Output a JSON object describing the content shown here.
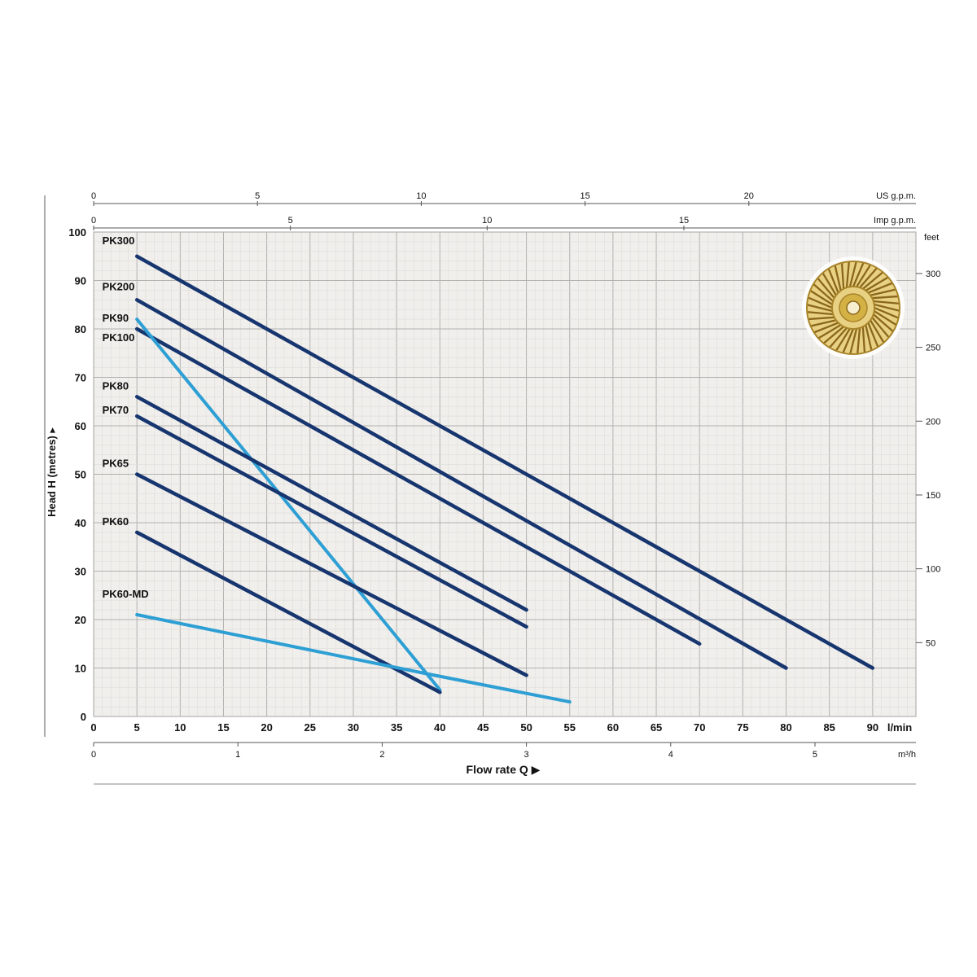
{
  "chart_data": {
    "type": "line",
    "xlabel": "Flow rate Q",
    "xlabel_arrow": "▶",
    "x_axis": {
      "unit": "l/min",
      "min": 0,
      "max": 95,
      "ticks": [
        0,
        5,
        10,
        15,
        20,
        25,
        30,
        35,
        40,
        45,
        50,
        55,
        60,
        65,
        70,
        75,
        80,
        85,
        90
      ]
    },
    "y_axis": {
      "label": "Head H (metres)",
      "arrow": "▸",
      "min": 0,
      "max": 100,
      "ticks": [
        0,
        10,
        20,
        30,
        40,
        50,
        60,
        70,
        80,
        90,
        100
      ]
    },
    "top_axes": [
      {
        "unit": "US g.p.m.",
        "ticks": [
          0,
          5,
          10,
          15,
          20
        ],
        "lmin_per_unit": 3.785
      },
      {
        "unit": "Imp g.p.m.",
        "ticks": [
          0,
          5,
          10,
          15
        ],
        "lmin_per_unit": 4.546
      }
    ],
    "right_axis": {
      "unit": "feet",
      "ticks": [
        50,
        100,
        150,
        200,
        250,
        300
      ],
      "m_per_unit": 0.3048
    },
    "bottom_axis": {
      "unit": "m³/h",
      "ticks": [
        0,
        1,
        2,
        3,
        4,
        5
      ],
      "lmin_per_unit": 16.667
    },
    "grid": {
      "minor_x": 1,
      "minor_y": 2,
      "major_x": 5,
      "major_y": 10
    },
    "series": [
      {
        "name": "PK300",
        "color": "#17356e",
        "width": 4.5,
        "points": [
          [
            5,
            95
          ],
          [
            90,
            10
          ]
        ],
        "label_at": [
          1,
          97.5
        ]
      },
      {
        "name": "PK200",
        "color": "#17356e",
        "width": 4.5,
        "points": [
          [
            5,
            86
          ],
          [
            80,
            10
          ]
        ],
        "label_at": [
          1,
          88
        ]
      },
      {
        "name": "PK90",
        "color": "#17356e",
        "width": 4.5,
        "points": [
          [
            5,
            80
          ],
          [
            70,
            15
          ]
        ],
        "label_at": [
          1,
          81.5
        ]
      },
      {
        "name": "PK100",
        "color": "#2e9fd4",
        "width": 4.0,
        "points": [
          [
            5,
            82
          ],
          [
            40,
            5.5
          ]
        ],
        "label_at": [
          1,
          77.5
        ]
      },
      {
        "name": "PK80",
        "color": "#17356e",
        "width": 4.5,
        "points": [
          [
            5,
            66
          ],
          [
            50,
            22
          ]
        ],
        "label_at": [
          1,
          67.5
        ]
      },
      {
        "name": "PK70",
        "color": "#17356e",
        "width": 4.5,
        "points": [
          [
            5,
            62
          ],
          [
            50,
            18.5
          ]
        ],
        "label_at": [
          1,
          62.5
        ]
      },
      {
        "name": "PK65",
        "color": "#17356e",
        "width": 4.5,
        "points": [
          [
            5,
            50
          ],
          [
            50,
            8.5
          ]
        ],
        "label_at": [
          1,
          51.5
        ]
      },
      {
        "name": "PK60",
        "color": "#17356e",
        "width": 4.5,
        "points": [
          [
            5,
            38
          ],
          [
            40,
            5
          ]
        ],
        "label_at": [
          1,
          39.5
        ]
      },
      {
        "name": "PK60-MD",
        "color": "#2e9fd4",
        "width": 4.0,
        "points": [
          [
            5,
            21
          ],
          [
            38,
            9
          ],
          [
            55,
            3
          ]
        ],
        "label_at": [
          1,
          24.5
        ]
      }
    ]
  },
  "colors": {
    "navy": "#17356e",
    "light_blue": "#2e9fd4",
    "plot_bg": "#f0efec",
    "grid_minor": "#dedddb",
    "grid_major": "#b3b2b0",
    "axis_line": "#555555",
    "text": "#111111",
    "impeller_light": "#e9d183",
    "impeller_gold": "#d4b145",
    "impeller_mid": "#a8842a",
    "impeller_dark": "#8a671a"
  }
}
